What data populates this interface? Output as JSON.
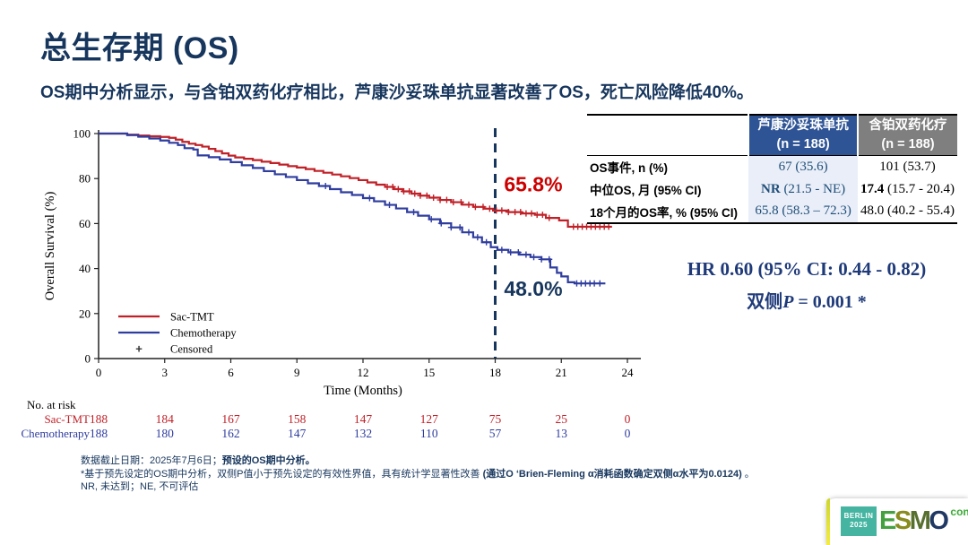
{
  "slide": {
    "title": "总生存期 (OS)",
    "subtitle": "OS期中分析显示，与含铂双药化疗相比，芦康沙妥珠单抗显著改善了OS，死亡风险降低40%。"
  },
  "chart_data": {
    "type": "line",
    "subtype": "kaplan-meier-step",
    "xlabel": "Time (Months)",
    "ylabel": "Overall Survival (%)",
    "xlim": [
      0,
      24
    ],
    "xticks": [
      0,
      3,
      6,
      9,
      12,
      15,
      18,
      21,
      24
    ],
    "ylim": [
      0,
      100
    ],
    "yticks": [
      0,
      20,
      40,
      60,
      80,
      100
    ],
    "grid": false,
    "reference_line": {
      "x": 18,
      "style": "dashed",
      "color": "#17365D"
    },
    "annotations": [
      {
        "text": "65.8%",
        "x": 18.4,
        "y": 77.5,
        "color": "#CC0000"
      },
      {
        "text": "48.0%",
        "x": 18.4,
        "y": 31,
        "color": "#17365D"
      }
    ],
    "legend": [
      {
        "label": "Sac-TMT",
        "marker": "line",
        "color": "#C02128"
      },
      {
        "label": "Chemotherapy",
        "marker": "line",
        "color": "#2F3D9E"
      },
      {
        "label": "Censored",
        "marker": "plus",
        "color": "#333333"
      }
    ],
    "series": [
      {
        "name": "Sac-TMT",
        "color": "#C02128",
        "points": [
          [
            0,
            100
          ],
          [
            1.0,
            100
          ],
          [
            1.3,
            99.5
          ],
          [
            1.8,
            99.1
          ],
          [
            2.3,
            98.8
          ],
          [
            2.8,
            98.5
          ],
          [
            3.2,
            98.1
          ],
          [
            3.5,
            97.3
          ],
          [
            3.8,
            96.3
          ],
          [
            4.1,
            95.5
          ],
          [
            4.4,
            94.9
          ],
          [
            4.7,
            94.2
          ],
          [
            5.0,
            93.2
          ],
          [
            5.3,
            92.2
          ],
          [
            5.6,
            91.2
          ],
          [
            5.9,
            90.2
          ],
          [
            6.2,
            89.4
          ],
          [
            6.6,
            88.8
          ],
          [
            7.0,
            88.2
          ],
          [
            7.4,
            87.5
          ],
          [
            7.8,
            86.9
          ],
          [
            8.2,
            86.2
          ],
          [
            8.6,
            85.5
          ],
          [
            9.0,
            84.9
          ],
          [
            9.4,
            84.2
          ],
          [
            9.8,
            83.4
          ],
          [
            10.2,
            82.6
          ],
          [
            10.6,
            81.8
          ],
          [
            11.0,
            81.0
          ],
          [
            11.4,
            80.2
          ],
          [
            11.8,
            79.3
          ],
          [
            12.2,
            78.3
          ],
          [
            12.6,
            77.3
          ],
          [
            13.0,
            76.3
          ],
          [
            13.4,
            75.3
          ],
          [
            13.8,
            74.3
          ],
          [
            14.2,
            73.3
          ],
          [
            14.6,
            72.4
          ],
          [
            15.0,
            71.5
          ],
          [
            15.5,
            70.5
          ],
          [
            16.0,
            69.5
          ],
          [
            16.5,
            68.4
          ],
          [
            17.0,
            67.4
          ],
          [
            17.5,
            66.6
          ],
          [
            17.9,
            65.8
          ],
          [
            18.6,
            65.1
          ],
          [
            19.2,
            64.5
          ],
          [
            19.8,
            63.9
          ],
          [
            20.3,
            62.5
          ],
          [
            20.9,
            61.4
          ],
          [
            21.3,
            58.6
          ],
          [
            23.3,
            58.6
          ]
        ],
        "censors": [
          13.1,
          13.35,
          13.6,
          13.85,
          14.1,
          14.35,
          14.6,
          14.9,
          15.2,
          15.5,
          15.8,
          16.1,
          16.45,
          16.8,
          17.1,
          17.45,
          17.75,
          18.05,
          18.3,
          18.6,
          18.9,
          19.15,
          19.4,
          19.65,
          19.9,
          20.15,
          20.45,
          21.55,
          21.75,
          21.95,
          22.15,
          22.35,
          22.55,
          22.75,
          22.95,
          23.15
        ]
      },
      {
        "name": "Chemotherapy",
        "color": "#2F3D9E",
        "points": [
          [
            0,
            100
          ],
          [
            0.9,
            100
          ],
          [
            1.3,
            99.3
          ],
          [
            1.8,
            98.6
          ],
          [
            2.3,
            97.8
          ],
          [
            2.8,
            96.9
          ],
          [
            3.2,
            95.9
          ],
          [
            3.6,
            94.9
          ],
          [
            3.9,
            93.5
          ],
          [
            4.3,
            92.9
          ],
          [
            4.5,
            90.3
          ],
          [
            5.0,
            89.5
          ],
          [
            5.5,
            88.5
          ],
          [
            6.0,
            87.3
          ],
          [
            6.5,
            85.9
          ],
          [
            7.0,
            84.7
          ],
          [
            7.5,
            83.3
          ],
          [
            8.0,
            81.9
          ],
          [
            8.5,
            80.7
          ],
          [
            9.0,
            79.3
          ],
          [
            9.5,
            77.9
          ],
          [
            10.0,
            76.7
          ],
          [
            10.5,
            75.3
          ],
          [
            11.0,
            73.9
          ],
          [
            11.5,
            72.7
          ],
          [
            12.0,
            71.3
          ],
          [
            12.5,
            69.9
          ],
          [
            13.0,
            68.3
          ],
          [
            13.5,
            66.7
          ],
          [
            14.0,
            65.1
          ],
          [
            14.5,
            63.5
          ],
          [
            15.0,
            61.9
          ],
          [
            15.5,
            60.1
          ],
          [
            16.0,
            58.3
          ],
          [
            16.5,
            56.1
          ],
          [
            17.0,
            53.9
          ],
          [
            17.4,
            51.7
          ],
          [
            17.8,
            49.5
          ],
          [
            18.1,
            48.3
          ],
          [
            18.6,
            47.2
          ],
          [
            19.1,
            46.2
          ],
          [
            19.6,
            45.1
          ],
          [
            20.1,
            44.1
          ],
          [
            20.5,
            40.5
          ],
          [
            20.8,
            38.1
          ],
          [
            21.0,
            36.5
          ],
          [
            21.3,
            33.9
          ],
          [
            21.6,
            33.4
          ],
          [
            23.0,
            33.4
          ]
        ],
        "censors": [
          10.3,
          12.3,
          13.2,
          14.3,
          15.1,
          15.55,
          16.0,
          16.4,
          16.8,
          17.2,
          17.6,
          18.3,
          18.7,
          19.05,
          19.4,
          19.75,
          20.1,
          20.45,
          21.7,
          21.9,
          22.1,
          22.3,
          22.5,
          22.75
        ]
      }
    ]
  },
  "results_table": {
    "columns": [
      {
        "name": "芦康沙妥珠单抗",
        "n": "(n = 188)",
        "bg": "#2F5496"
      },
      {
        "name": "含铂双药化疗",
        "n": "(n = 188)",
        "bg": "#7F7F7F"
      }
    ],
    "rows": [
      {
        "label": "OS事件, n (%)",
        "v1b": "",
        "v1r": "67 (35.6)",
        "v2b": "",
        "v2r": "101 (53.7)"
      },
      {
        "label": "中位OS, 月 (95% CI)",
        "v1b": "NR",
        "v1r": " (21.5 - NE)",
        "v2b": "17.4",
        "v2r": " (15.7 - 20.4)"
      },
      {
        "label": "18个月的OS率, % (95% CI)",
        "v1b": "",
        "v1r": "65.8 (58.3 – 72.3)",
        "v2b": "",
        "v2r": "48.0 (40.2 - 55.4)"
      }
    ]
  },
  "hr": {
    "line1": "HR 0.60 (95% CI: 0.44 - 0.82)",
    "p_prefix": "双侧",
    "p_symbol": "P",
    "p_rest": " = 0.001 *"
  },
  "risk_table": {
    "title": "No. at risk",
    "timepoints": [
      0,
      3,
      6,
      9,
      12,
      15,
      18,
      21,
      24
    ],
    "rows": [
      {
        "label": "Sac-TMT",
        "color": "#C02128",
        "values": [
          "188",
          "184",
          "167",
          "158",
          "147",
          "127",
          "75",
          "25",
          "0"
        ]
      },
      {
        "label": "Chemotherapy",
        "color": "#2F3D9E",
        "values": [
          "188",
          "180",
          "162",
          "147",
          "132",
          "110",
          "57",
          "13",
          "0"
        ]
      }
    ]
  },
  "footnotes": {
    "lines": [
      [
        {
          "t": "数据截止日期：2025年7月6日；",
          "b": false
        },
        {
          "t": "预设的OS期中分析。",
          "b": true
        }
      ],
      [
        {
          "t": "*基于预先设定的OS期中分析，双侧P值小于预先设定的有效性界值，具有统计学显著性改善 ",
          "b": false
        },
        {
          "t": "(通过O ‘Brien-Fleming α消耗函数确定双侧α水平为0.0124)",
          "b": true
        },
        {
          "t": " 。",
          "b": false
        }
      ],
      [
        {
          "t": "NR, 未达到；NE, 不可评估",
          "b": false
        }
      ]
    ]
  },
  "logo": {
    "berlin": "BERLIN",
    "year": "2025",
    "berlin_bg": "#45B5A2",
    "letters": [
      {
        "ch": "E",
        "color": "#44A13F"
      },
      {
        "ch": "S",
        "color": "#8A8C1E"
      },
      {
        "ch": "M",
        "color": "#57702E"
      },
      {
        "ch": "O",
        "color": "#203864"
      }
    ],
    "congress": "congress"
  }
}
